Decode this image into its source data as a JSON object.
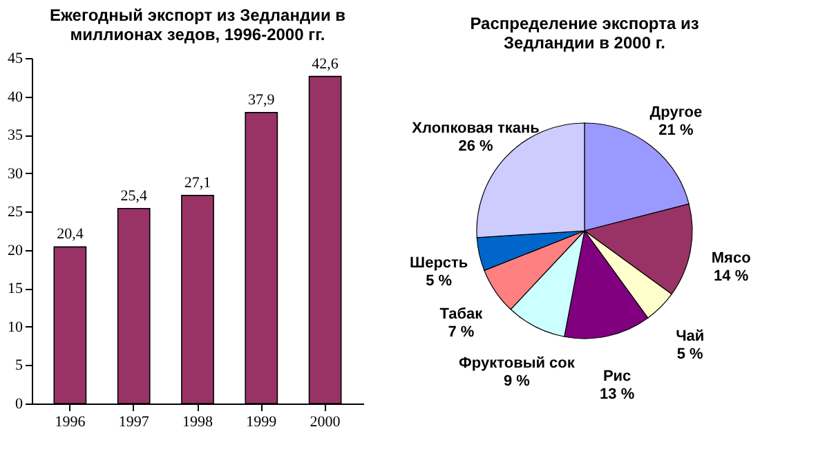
{
  "chart_data": [
    {
      "type": "bar",
      "title": "Ежегодный экспорт из Зедландии в\nмиллионах зедов, 1996-2000 гг.",
      "categories": [
        "1996",
        "1997",
        "1998",
        "1999",
        "2000"
      ],
      "values": [
        20.4,
        25.4,
        27.1,
        37.9,
        42.6
      ],
      "value_labels": [
        "20,4",
        "25,4",
        "27,1",
        "37,9",
        "42,6"
      ],
      "color": "#993366",
      "ylim": [
        0,
        45
      ],
      "yticks": [
        0,
        5,
        10,
        15,
        20,
        25,
        30,
        35,
        40,
        45
      ],
      "grid": false
    },
    {
      "type": "pie",
      "title": "Распределение экспорта из\nЗедландии  в 2000 г.",
      "categories": [
        "Другое",
        "Мясо",
        "Чай",
        "Рис",
        "Фруктовый сок",
        "Табак",
        "Шерсть",
        "Хлопковая ткань"
      ],
      "values": [
        21,
        14,
        5,
        13,
        9,
        7,
        5,
        26
      ],
      "value_labels": [
        "21 %",
        "14 %",
        "5 %",
        "13 %",
        "9 %",
        "7 %",
        "5 %",
        "26 %"
      ],
      "colors": [
        "#9999ff",
        "#993366",
        "#ffffcc",
        "#800080",
        "#ccffff",
        "#ff8080",
        "#0066cc",
        "#ccccff"
      ]
    }
  ]
}
